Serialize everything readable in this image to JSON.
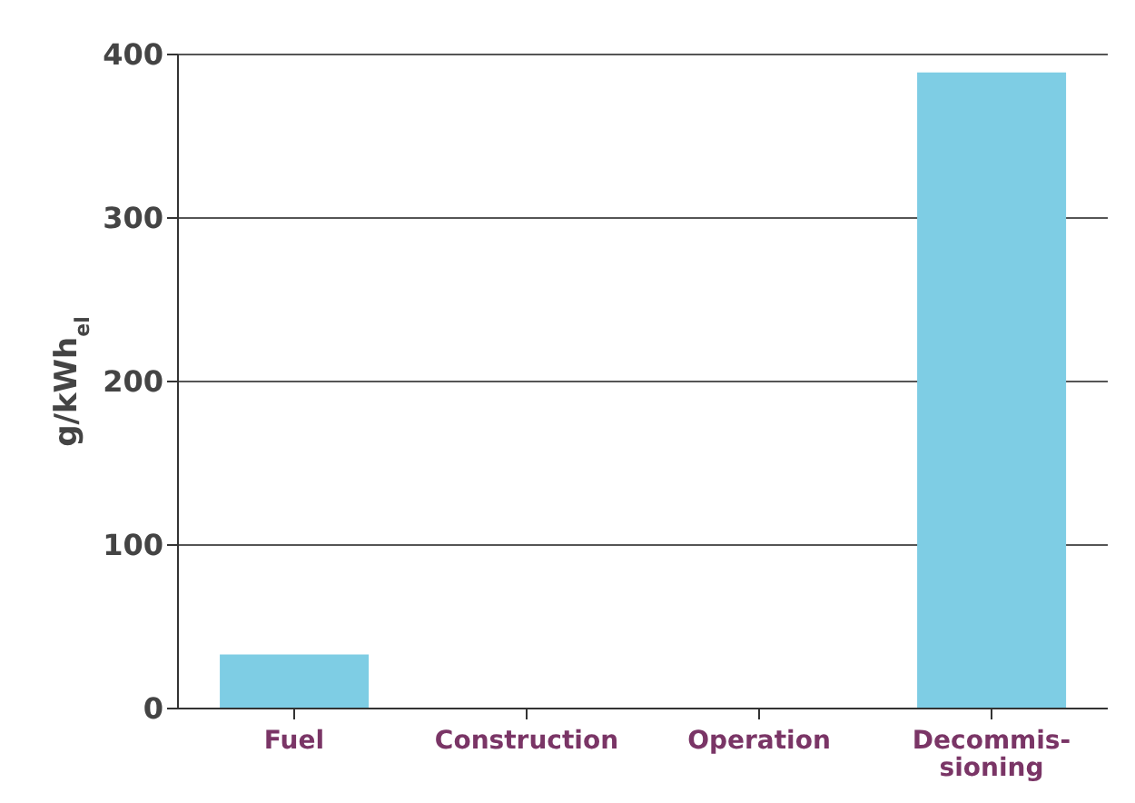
{
  "chart_data": {
    "type": "bar",
    "ylabel": "g/kWh$_{el}$",
    "categories": [
      "Fuel",
      "Construction",
      "Operation",
      "Decommis-\nsioning"
    ],
    "values": [
      33,
      0,
      0,
      389
    ],
    "color": "#7ecde4",
    "ylim": [
      0,
      400
    ],
    "yticks": [
      0,
      100,
      200,
      300,
      400
    ],
    "grid": "y"
  }
}
